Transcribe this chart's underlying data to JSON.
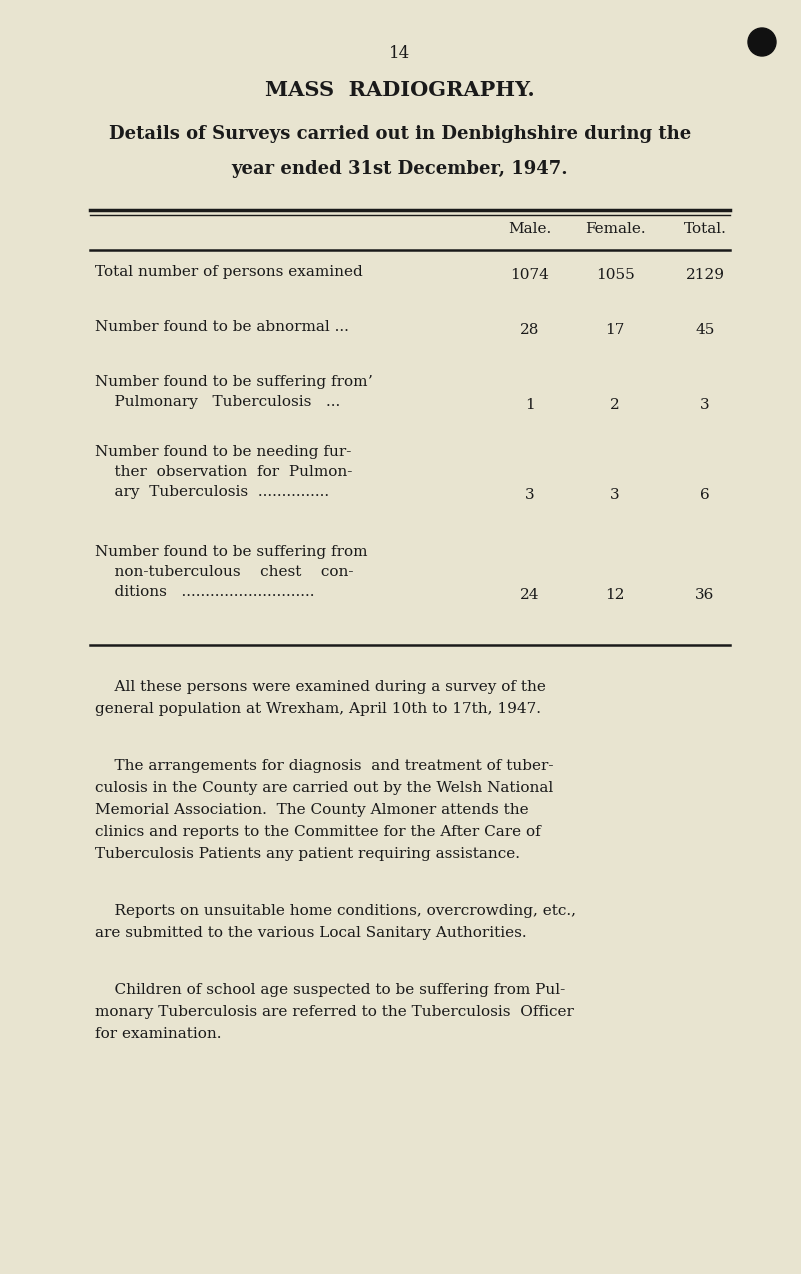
{
  "bg_color": "#e8e4d0",
  "text_color": "#1a1a1a",
  "page_number": "14",
  "main_title": "MASS  RADIOGRAPHY.",
  "subtitle_line1": "Details of Surveys carried out in Denbighshire during the",
  "subtitle_line2": "year ended 31st December, 1947.",
  "col_headers": [
    "Male.",
    "Female.",
    "Total."
  ],
  "table_rows": [
    {
      "label_lines": [
        "Total number of persons examined"
      ],
      "values": [
        "1074",
        "1055",
        "2129"
      ],
      "val_row": 0
    },
    {
      "label_lines": [
        "Number found to be abnormal ..."
      ],
      "values": [
        "28",
        "17",
        "45"
      ],
      "val_row": 0
    },
    {
      "label_lines": [
        "Number found to be suffering fromʼ",
        "    Pulmonary   Tuberculosis   ..."
      ],
      "values": [
        "1",
        "2",
        "3"
      ],
      "val_row": 1
    },
    {
      "label_lines": [
        "Number found to be needing fur-",
        "    ther  observation  for  Pulmon-",
        "    ary  Tuberculosis  ..............."
      ],
      "values": [
        "3",
        "3",
        "6"
      ],
      "val_row": 2
    },
    {
      "label_lines": [
        "Number found to be suffering from",
        "    non-tuberculous    chest    con-",
        "    ditions   ............................"
      ],
      "values": [
        "24",
        "12",
        "36"
      ],
      "val_row": 2
    }
  ],
  "paragraph1": "All these persons were examined during a survey of the general population at Wrexham, April 10th to 17th, 1947.",
  "paragraph2": "The arrangements for diagnosis  and treatment of tuber-culosis in the County are carried out by the Welsh National Memorial Association.  The County Almoner attends the clinics and reports to the Committee for the After Care of Tuberculosis Patients any patient requiring assistance.",
  "paragraph3": "Reports on unsuitable home conditions, overcrowding, etc., are submitted to the various Local Sanitary Authorities.",
  "paragraph4": "Children of school age suspected to be suffering from Pul-monary Tuberculosis are referred to the Tuberculosis  Officer for examination."
}
